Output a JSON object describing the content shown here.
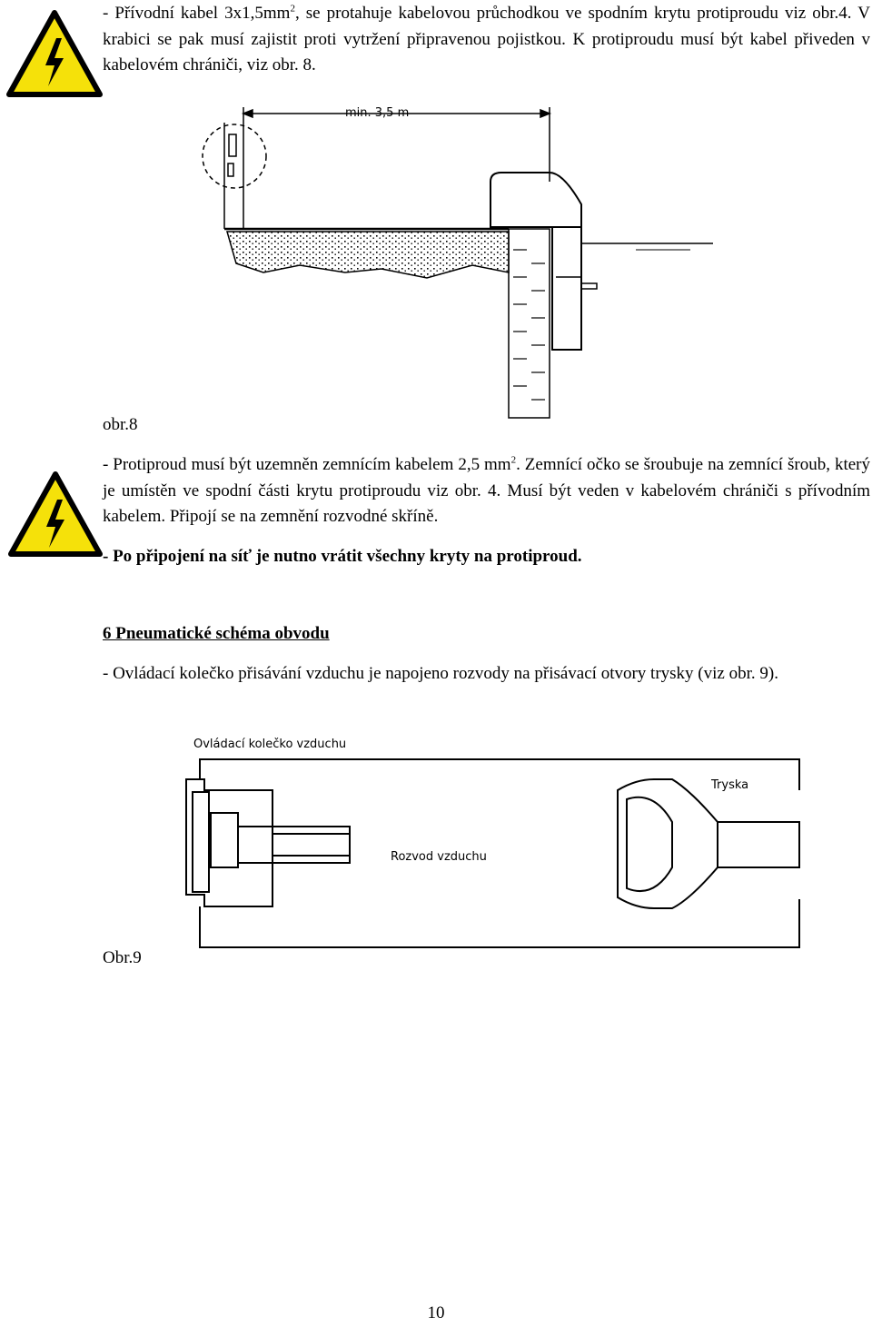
{
  "p1": {
    "before": "- Přívodní kabel 3x1,5mm",
    "sup": "2",
    "after": ", se protahuje kabelovou průchodkou ve spodním krytu protiproudu viz obr.4. V krabici se pak musí zajistit proti vytržení připravenou pojistkou. K protiproudu musí být kabel přiveden v kabelovém chrániči, viz obr. 8."
  },
  "figure8": {
    "dimension_label": "min. 3,5 m",
    "caption": "obr.8"
  },
  "p2": {
    "before": "- Protiproud musí být uzemněn zemnícím kabelem 2,5 mm",
    "sup": "2",
    "after": ". Zemnící očko se šroubuje na zemnící šroub, který je umístěn ve spodní části krytu protiproudu viz obr. 4. Musí být veden v kabelovém chrániči s přívodním kabelem. Připojí se na zemnění rozvodné skříně."
  },
  "warning": "- Po připojení na síť je nutno vrátit všechny kryty na protiproud.",
  "section": {
    "heading": "6 Pneumatické schéma obvodu",
    "text": "- Ovládací kolečko přisávání vzduchu je napojeno rozvody na přisávací otvory trysky (viz obr. 9)."
  },
  "figure9": {
    "labels": [
      "Ovládací kolečko vzduchu",
      "Tryska",
      "Rozvod vzduchu"
    ],
    "caption": "Obr.9"
  },
  "page_number": "10"
}
